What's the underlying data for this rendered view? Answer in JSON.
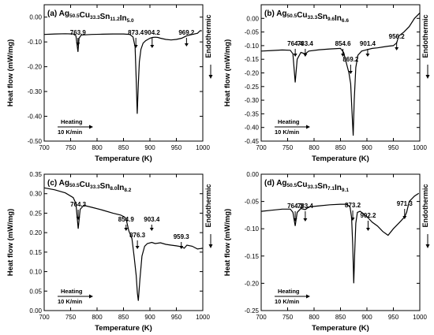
{
  "chart_data": [
    {
      "type": "line",
      "label": "(a)",
      "title": [
        {
          "t": "Ag",
          "sub": false
        },
        {
          "t": "50.5",
          "sub": true
        },
        {
          "t": "Cu",
          "sub": false
        },
        {
          "t": "33.3",
          "sub": true
        },
        {
          "t": "Sn",
          "sub": false
        },
        {
          "t": "11.2",
          "sub": true
        },
        {
          "t": "In",
          "sub": false
        },
        {
          "t": "5.0",
          "sub": true
        }
      ],
      "xlabel": "Temperature (K)",
      "ylabel": "Heat flow (mW/mg)",
      "side_label": "Endothermic",
      "heating_label": "Heating",
      "rate_label": "10 K/min",
      "xlim": [
        700,
        1000
      ],
      "ylim": [
        -0.5,
        0.05
      ],
      "xticks": [
        700,
        750,
        800,
        850,
        900,
        950,
        1000
      ],
      "yticks": [
        0.0,
        -0.1,
        -0.2,
        -0.3,
        -0.4,
        -0.5
      ],
      "ytick_labels": [
        "0.00",
        "-0.10",
        "-0.20",
        "-0.30",
        "-0.40",
        "-0.50"
      ],
      "x": [
        700,
        720,
        740,
        755,
        760,
        763.9,
        766,
        770,
        790,
        810,
        830,
        850,
        862,
        868,
        872,
        874,
        876,
        878,
        880,
        883,
        887,
        892,
        900,
        905,
        910,
        915,
        920,
        930,
        940,
        950,
        960,
        965,
        970,
        980,
        990,
        995,
        998
      ],
      "y": [
        -0.07,
        -0.068,
        -0.067,
        -0.068,
        -0.075,
        -0.14,
        -0.085,
        -0.072,
        -0.07,
        -0.069,
        -0.068,
        -0.068,
        -0.07,
        -0.08,
        -0.12,
        -0.25,
        -0.39,
        -0.27,
        -0.18,
        -0.13,
        -0.105,
        -0.095,
        -0.085,
        -0.082,
        -0.081,
        -0.082,
        -0.085,
        -0.09,
        -0.092,
        -0.09,
        -0.085,
        -0.08,
        -0.075,
        -0.07,
        -0.065,
        -0.055,
        -0.055
      ],
      "annotations": [
        {
          "text": "763.9",
          "x": 763.9
        },
        {
          "text": "873.4",
          "x": 873.4
        },
        {
          "text": "904.2",
          "x": 904.2
        },
        {
          "text": "969.2",
          "x": 969.2
        }
      ]
    },
    {
      "type": "line",
      "label": "(b)",
      "title": [
        {
          "t": "Ag",
          "sub": false
        },
        {
          "t": "50.5",
          "sub": true
        },
        {
          "t": "Cu",
          "sub": false
        },
        {
          "t": "33.3",
          "sub": true
        },
        {
          "t": "Sn",
          "sub": false
        },
        {
          "t": "9.6",
          "sub": true
        },
        {
          "t": "In",
          "sub": false
        },
        {
          "t": "6.6",
          "sub": true
        }
      ],
      "xlabel": "Temperature (K)",
      "ylabel": "Heat flow (mW/mg)",
      "side_label": "Endothermic",
      "heating_label": "Heating",
      "rate_label": "10 K/min",
      "xlim": [
        700,
        1000
      ],
      "ylim": [
        -0.45,
        0.05
      ],
      "xticks": [
        700,
        750,
        800,
        850,
        900,
        950,
        1000
      ],
      "yticks": [
        0.0,
        -0.05,
        -0.1,
        -0.15,
        -0.2,
        -0.25,
        -0.3,
        -0.35,
        -0.4,
        -0.45
      ],
      "ytick_labels": [
        "0.00",
        "-0.05",
        "-0.10",
        "-0.15",
        "-0.20",
        "-0.25",
        "-0.30",
        "-0.35",
        "-0.40",
        "-0.45"
      ],
      "x": [
        700,
        720,
        740,
        755,
        760,
        764.4,
        768,
        775,
        783.4,
        790,
        810,
        830,
        850,
        856,
        862,
        866,
        869.2,
        872,
        874,
        876,
        879,
        883,
        890,
        900,
        910,
        920,
        930,
        940,
        950,
        956.2,
        960,
        970,
        980,
        990,
        1000
      ],
      "y": [
        -0.12,
        -0.118,
        -0.116,
        -0.117,
        -0.13,
        -0.235,
        -0.15,
        -0.125,
        -0.13,
        -0.12,
        -0.115,
        -0.112,
        -0.11,
        -0.125,
        -0.17,
        -0.2,
        -0.24,
        -0.35,
        -0.43,
        -0.3,
        -0.18,
        -0.135,
        -0.12,
        -0.115,
        -0.11,
        -0.108,
        -0.105,
        -0.102,
        -0.1,
        -0.09,
        -0.065,
        -0.05,
        -0.03,
        0.0,
        0.02
      ],
      "annotations": [
        {
          "text": "764.4",
          "x": 764.4
        },
        {
          "text": "783.4",
          "x": 783.4
        },
        {
          "text": "854.6",
          "x": 854.6
        },
        {
          "text": "869.2",
          "x": 869.2
        },
        {
          "text": "901.4",
          "x": 901.4
        },
        {
          "text": "956.2",
          "x": 956.2
        }
      ]
    },
    {
      "type": "line",
      "label": "(c)",
      "title": [
        {
          "t": "Ag",
          "sub": false
        },
        {
          "t": "50.5",
          "sub": true
        },
        {
          "t": "Cu",
          "sub": false
        },
        {
          "t": "33.3",
          "sub": true
        },
        {
          "t": "Sn",
          "sub": false
        },
        {
          "t": "8.0",
          "sub": true
        },
        {
          "t": "In",
          "sub": false
        },
        {
          "t": "8.2",
          "sub": true
        }
      ],
      "xlabel": "Temperature (K)",
      "ylabel": "Heat flow (mW/mg)",
      "side_label": "Endothermic",
      "heating_label": "Heating",
      "rate_label": "10 K/min",
      "xlim": [
        700,
        1000
      ],
      "ylim": [
        0.0,
        0.35
      ],
      "xticks": [
        700,
        750,
        800,
        850,
        900,
        950,
        1000
      ],
      "yticks": [
        0.35,
        0.3,
        0.25,
        0.2,
        0.15,
        0.1,
        0.05,
        0.0
      ],
      "ytick_labels": [
        "0.35",
        "0.30",
        "0.25",
        "0.20",
        "0.15",
        "0.10",
        "0.05",
        "0.00"
      ],
      "x": [
        700,
        720,
        740,
        755,
        760,
        764.3,
        768,
        775,
        790,
        810,
        830,
        845,
        852,
        854.9,
        860,
        866,
        870,
        874,
        876.3,
        878,
        881,
        885,
        890,
        895,
        903.4,
        910,
        920,
        930,
        940,
        950,
        959.3,
        965,
        970,
        980,
        990,
        1000
      ],
      "y": [
        0.315,
        0.31,
        0.302,
        0.29,
        0.275,
        0.21,
        0.26,
        0.27,
        0.265,
        0.258,
        0.25,
        0.245,
        0.24,
        0.235,
        0.205,
        0.185,
        0.14,
        0.09,
        0.045,
        0.025,
        0.08,
        0.14,
        0.165,
        0.172,
        0.175,
        0.172,
        0.174,
        0.17,
        0.168,
        0.166,
        0.164,
        0.16,
        0.168,
        0.165,
        0.158,
        0.16
      ],
      "annotations": [
        {
          "text": "764.3",
          "x": 764.3
        },
        {
          "text": "854.9",
          "x": 854.9
        },
        {
          "text": "876.3",
          "x": 876.3
        },
        {
          "text": "903.4",
          "x": 903.4
        },
        {
          "text": "959.3",
          "x": 959.3
        }
      ]
    },
    {
      "type": "line",
      "label": "(d)",
      "title": [
        {
          "t": "Ag",
          "sub": false
        },
        {
          "t": "50.5",
          "sub": true
        },
        {
          "t": "Cu",
          "sub": false
        },
        {
          "t": "33.3",
          "sub": true
        },
        {
          "t": "Sn",
          "sub": false
        },
        {
          "t": "7.1",
          "sub": true
        },
        {
          "t": "In",
          "sub": false
        },
        {
          "t": "9.1",
          "sub": true
        }
      ],
      "xlabel": "Temperature (K)",
      "ylabel": "Heat flow (mW/mg)",
      "side_label": "Endothermic",
      "heating_label": "Heating",
      "rate_label": "10 K/min",
      "xlim": [
        700,
        1000
      ],
      "ylim": [
        -0.25,
        0.0
      ],
      "xticks": [
        700,
        750,
        800,
        850,
        900,
        950,
        1000
      ],
      "yticks": [
        0.0,
        -0.05,
        -0.1,
        -0.15,
        -0.2,
        -0.25
      ],
      "ytick_labels": [
        "0.00",
        "-0.05",
        "-0.10",
        "-0.15",
        "-0.20",
        "-0.25"
      ],
      "x": [
        700,
        720,
        740,
        755,
        760,
        764.3,
        768,
        775,
        783.4,
        790,
        810,
        830,
        850,
        862,
        868,
        871,
        873.2,
        875,
        877,
        879,
        882,
        887,
        893,
        902.2,
        910,
        920,
        930,
        940,
        950,
        960,
        965,
        971.3,
        975,
        980,
        990,
        998
      ],
      "y": [
        -0.068,
        -0.066,
        -0.064,
        -0.064,
        -0.07,
        -0.095,
        -0.07,
        -0.063,
        -0.065,
        -0.06,
        -0.058,
        -0.056,
        -0.055,
        -0.055,
        -0.06,
        -0.08,
        -0.13,
        -0.2,
        -0.14,
        -0.09,
        -0.07,
        -0.068,
        -0.072,
        -0.08,
        -0.088,
        -0.095,
        -0.105,
        -0.112,
        -0.1,
        -0.09,
        -0.085,
        -0.078,
        -0.07,
        -0.05,
        -0.04,
        -0.035
      ],
      "annotations": [
        {
          "text": "764.3",
          "x": 764.3
        },
        {
          "text": "783.4",
          "x": 783.4
        },
        {
          "text": "873.2",
          "x": 873.2
        },
        {
          "text": "902.2",
          "x": 902.2
        },
        {
          "text": "971.3",
          "x": 971.3
        }
      ]
    }
  ]
}
